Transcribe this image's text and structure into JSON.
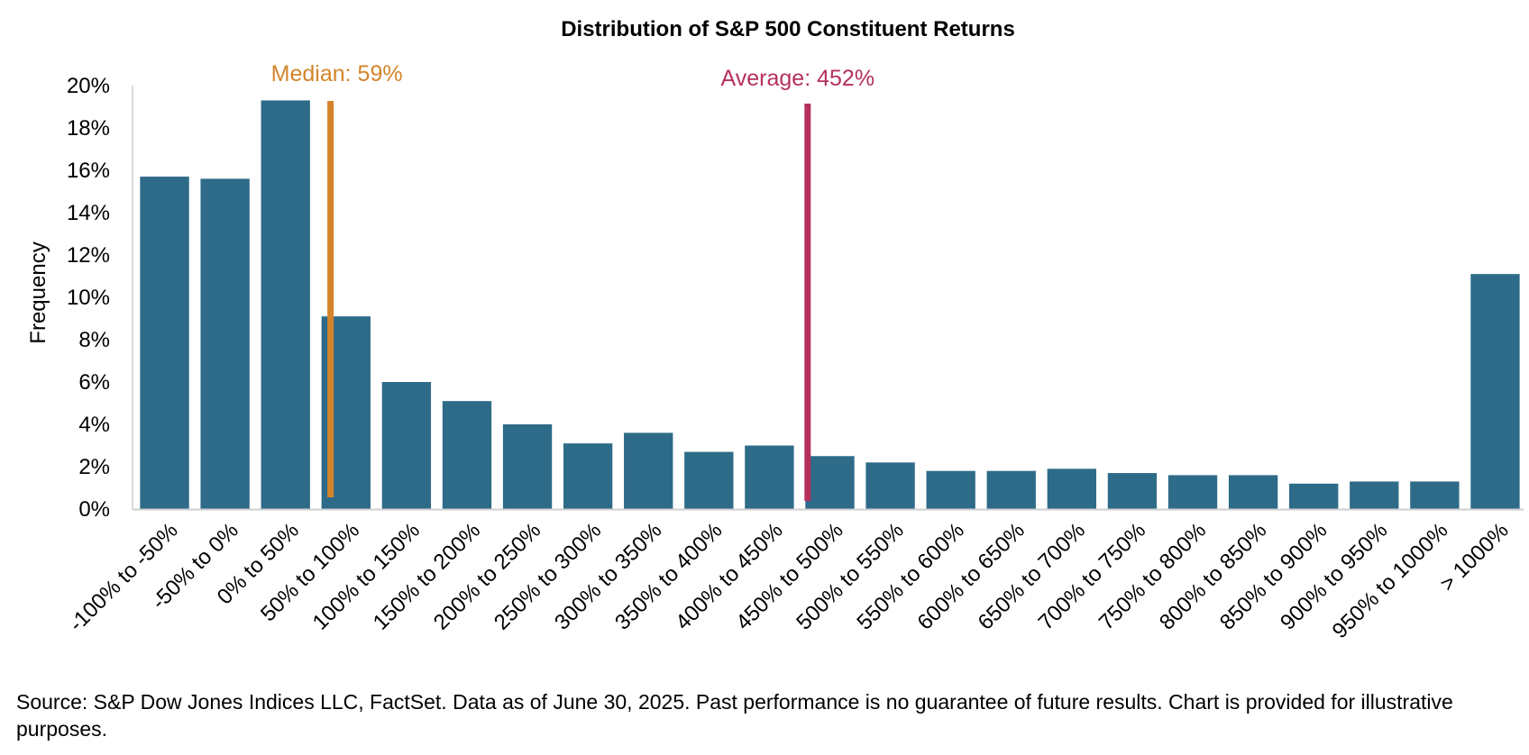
{
  "chart_data": {
    "type": "bar",
    "title": "Distribution of S&P 500 Constituent Returns",
    "xlabel": "",
    "ylabel": "Frequency",
    "ylim": [
      0,
      20
    ],
    "y_ticks": [
      "0%",
      "2%",
      "4%",
      "6%",
      "8%",
      "10%",
      "12%",
      "14%",
      "16%",
      "18%",
      "20%"
    ],
    "y_unit": "%",
    "grid": false,
    "legend": "none",
    "categories": [
      "-100% to -50%",
      "-50% to 0%",
      "0% to 50%",
      "50% to 100%",
      "100% to 150%",
      "150% to 200%",
      "200% to 250%",
      "250% to 300%",
      "300% to 350%",
      "350% to 400%",
      "400% to 450%",
      "450% to 500%",
      "500% to 550%",
      "550% to 600%",
      "600% to 650%",
      "650% to 700%",
      "700% to 750%",
      "750% to 800%",
      "800% to 850%",
      "850% to 900%",
      "900% to 950%",
      "950% to 1000%",
      "> 1000%"
    ],
    "values": [
      15.7,
      15.6,
      19.3,
      9.1,
      6.0,
      5.1,
      4.0,
      3.1,
      3.6,
      2.7,
      3.0,
      2.5,
      2.2,
      1.8,
      1.8,
      1.9,
      1.7,
      1.6,
      1.6,
      1.2,
      1.3,
      1.3,
      11.1
    ],
    "bar_color": "#2E6B88",
    "annotations": [
      {
        "label": "Median: 59%",
        "return_pct": 59,
        "color": "#D4842A"
      },
      {
        "label": "Average: 452%",
        "return_pct": 452,
        "color": "#B5305C"
      }
    ]
  },
  "source_note": "Source: S&P Dow Jones Indices LLC, FactSet. Data as of June 30, 2025. Past performance is no guarantee of future results. Chart is provided for illustrative purposes."
}
